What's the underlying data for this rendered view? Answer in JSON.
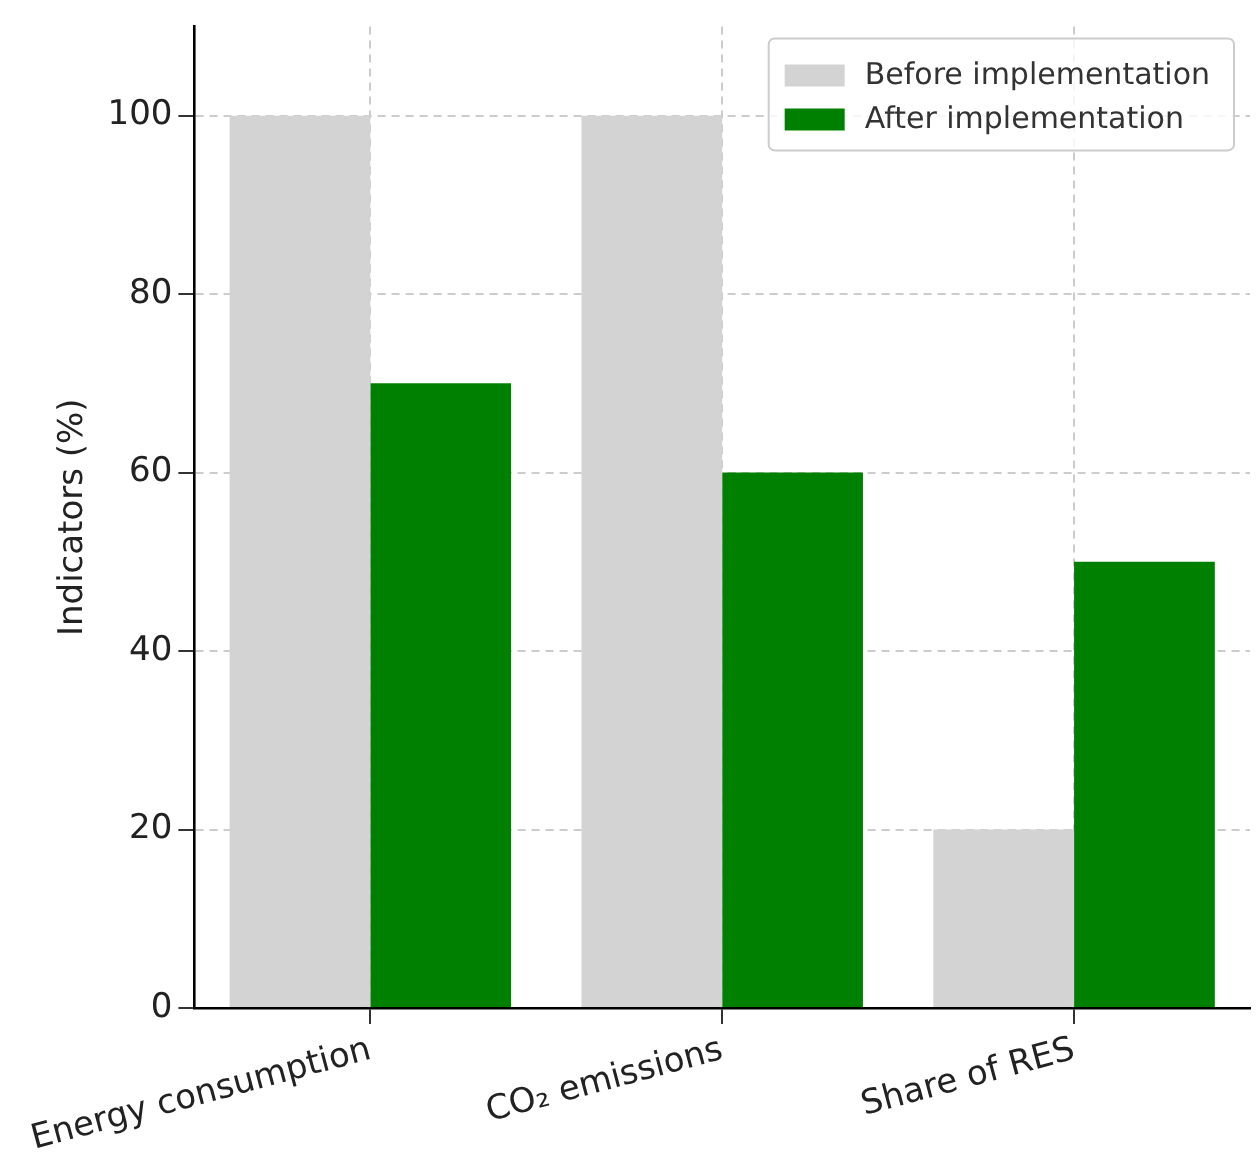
{
  "chart_data": {
    "type": "bar",
    "ylabel": "Indicators (%)",
    "categories": [
      "Energy consumption",
      "CO₂ emissions",
      "Share of RES"
    ],
    "series": [
      {
        "name": "Before implementation",
        "color": "#d3d3d3",
        "values": [
          100,
          100,
          20
        ]
      },
      {
        "name": "After implementation",
        "color": "#008000",
        "values": [
          70,
          60,
          50
        ]
      }
    ],
    "ylim": [
      0,
      110
    ],
    "yticks": [
      0,
      20,
      40,
      60,
      80,
      100
    ],
    "grid": true,
    "legend": "top right"
  }
}
